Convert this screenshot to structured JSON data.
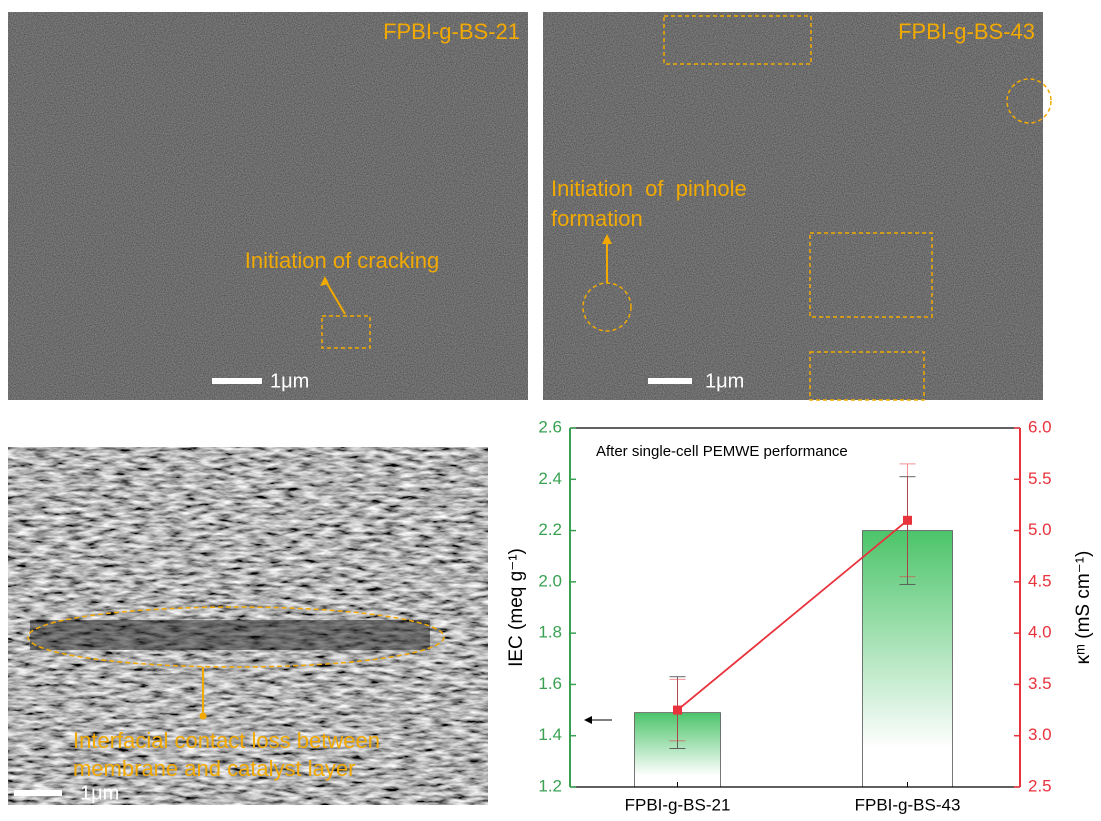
{
  "panels": [
    {
      "label": "FPBI-g-BS-21",
      "annotation": "Initiation of cracking",
      "scale": "1μm"
    },
    {
      "label": "FPBI-g-BS-43",
      "annotation_lines": [
        "Initiation  of  pinhole",
        "formation"
      ],
      "scale": "1μm"
    },
    {
      "annotation_lines": [
        "Interfacial contact loss between",
        "membrane and catalyst layer"
      ],
      "scale": "1μm"
    }
  ],
  "chart_data": {
    "type": "bar",
    "annotation": "After single-cell PEMWE performance",
    "categories": [
      "FPBI-g-BS-21",
      "FPBI-g-BS-43"
    ],
    "y_label": "IEC (meq g⁻¹)",
    "y2_label": "κᵐ (mS cm⁻¹)",
    "ylim": [
      1.2,
      2.6
    ],
    "yticks": [
      1.2,
      1.4,
      1.6,
      1.8,
      {
        "value": 2,
        "label": "2.0"
      },
      2.2,
      2.4,
      2.6
    ],
    "y2lim": [
      2.5,
      6
    ],
    "y2ticks": [
      2.5,
      {
        "value": 3,
        "label": "3.0"
      },
      3.5,
      {
        "value": 4,
        "label": "4.0"
      },
      4.5,
      {
        "value": 5,
        "label": "5.0"
      },
      5.5,
      {
        "value": 6,
        "label": "6.0"
      }
    ],
    "y_color": "#3aa152",
    "y2_color": "#e8323c",
    "series": [
      {
        "type": "bar",
        "color": "#4cc46a",
        "values": [
          1.49,
          2.2
        ],
        "errors": [
          0.14,
          0.21
        ]
      },
      {
        "type": "line",
        "axis": "y2",
        "color": "#e8323c",
        "values": [
          3.25,
          5.1
        ],
        "errors": [
          0.3,
          0.55
        ]
      }
    ]
  }
}
